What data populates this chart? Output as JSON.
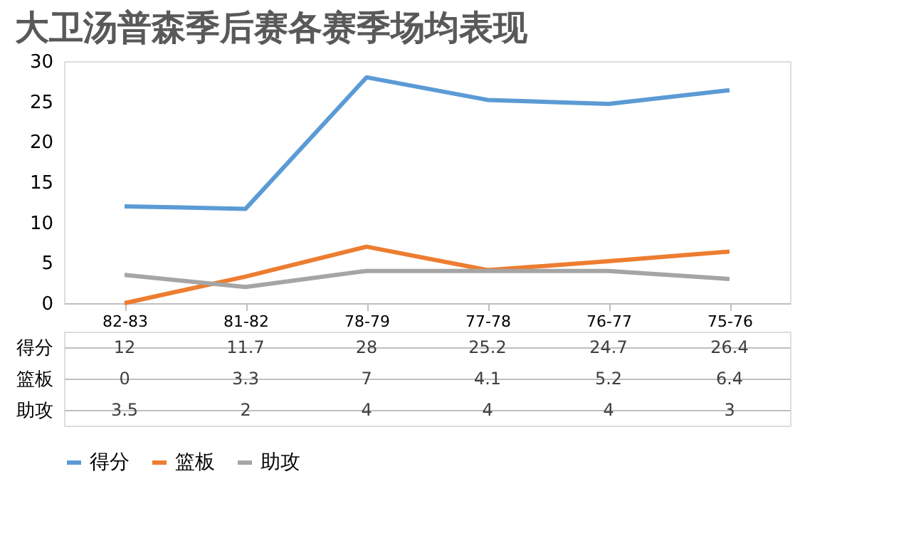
{
  "chart_data": {
    "type": "line",
    "title": "大卫汤普森季后赛各赛季场均表现",
    "categories": [
      "82-83",
      "81-82",
      "78-79",
      "77-78",
      "76-77",
      "75-76"
    ],
    "series": [
      {
        "name": "得分",
        "color": "#5b9bd5",
        "values": [
          12,
          11.7,
          28,
          25.2,
          24.7,
          26.4
        ]
      },
      {
        "name": "篮板",
        "color": "#ed7d31",
        "values": [
          0,
          3.3,
          7,
          4.1,
          5.2,
          6.4
        ]
      },
      {
        "name": "助攻",
        "color": "#a5a5a5",
        "values": [
          3.5,
          2,
          4,
          4,
          4,
          3
        ]
      }
    ],
    "ylim": [
      0,
      30
    ],
    "yticks": [
      0,
      5,
      10,
      15,
      20,
      25,
      30
    ],
    "grid": false,
    "legend": "bottom",
    "data_labels": true,
    "line_style": "solid",
    "marker": "none"
  }
}
